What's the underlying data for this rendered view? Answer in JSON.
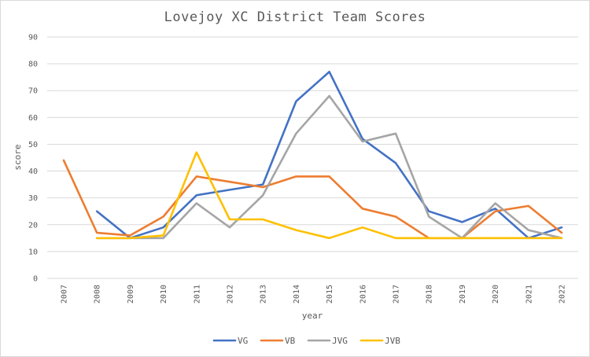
{
  "chart_data": {
    "type": "line",
    "title": "Lovejoy XC District Team Scores",
    "xlabel": "year",
    "ylabel": "score",
    "ylim": [
      0,
      90
    ],
    "ytick_step": 10,
    "grid": "horizontal",
    "legend_position": "bottom",
    "categories": [
      "2007",
      "2008",
      "2009",
      "2010",
      "2011",
      "2012",
      "2013",
      "2014",
      "2015",
      "2016",
      "2017",
      "2018",
      "2019",
      "2020",
      "2021",
      "2022"
    ],
    "series": [
      {
        "name": "VG",
        "color": "#4472C4",
        "values": [
          null,
          25,
          15,
          19,
          31,
          33,
          35,
          66,
          77,
          52,
          43,
          25,
          21,
          26,
          15,
          19
        ]
      },
      {
        "name": "VB",
        "color": "#ED7D31",
        "values": [
          44,
          17,
          16,
          23,
          38,
          36,
          34,
          38,
          38,
          26,
          23,
          15,
          15,
          25,
          27,
          17
        ]
      },
      {
        "name": "JVG",
        "color": "#A5A5A5",
        "values": [
          null,
          15,
          15,
          15,
          28,
          19,
          31,
          54,
          68,
          51,
          54,
          23,
          15,
          28,
          18,
          15
        ]
      },
      {
        "name": "JVB",
        "color": "#FFC000",
        "values": [
          null,
          15,
          15,
          16,
          47,
          22,
          22,
          18,
          15,
          19,
          15,
          15,
          15,
          15,
          15,
          15
        ]
      }
    ]
  }
}
